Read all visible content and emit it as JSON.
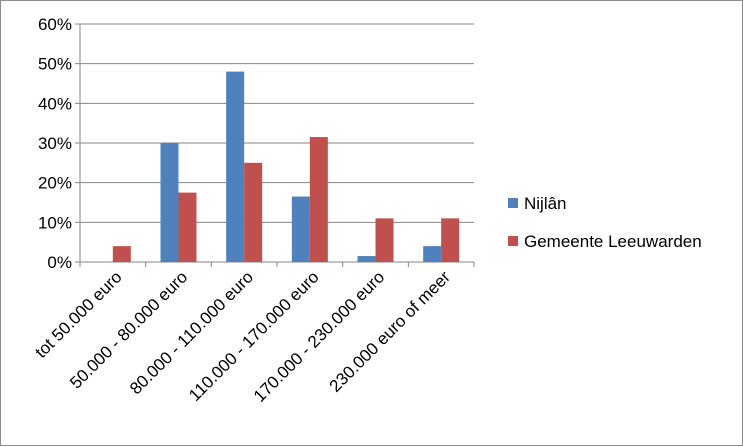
{
  "chart_data": {
    "type": "bar",
    "categories": [
      "tot 50.000 euro",
      "50.000 - 80.000 euro",
      "80.000 - 110.000 euro",
      "110.000 - 170.000 euro",
      "170.000 - 230.000 euro",
      "230.000 euro of meer"
    ],
    "series": [
      {
        "name": "Nijlân",
        "color": "#4f81bd",
        "values": [
          0,
          30,
          48,
          16.5,
          1.5,
          4
        ]
      },
      {
        "name": "Gemeente Leeuwarden",
        "color": "#c0504d",
        "values": [
          4,
          17.5,
          25,
          31.5,
          11,
          11
        ]
      }
    ],
    "ylim": [
      0,
      60
    ],
    "yticks": [
      0,
      10,
      20,
      30,
      40,
      50,
      60
    ],
    "ytick_labels": [
      "0%",
      "10%",
      "20%",
      "30%",
      "40%",
      "50%",
      "60%"
    ],
    "grid": true,
    "legend_position": "right"
  }
}
